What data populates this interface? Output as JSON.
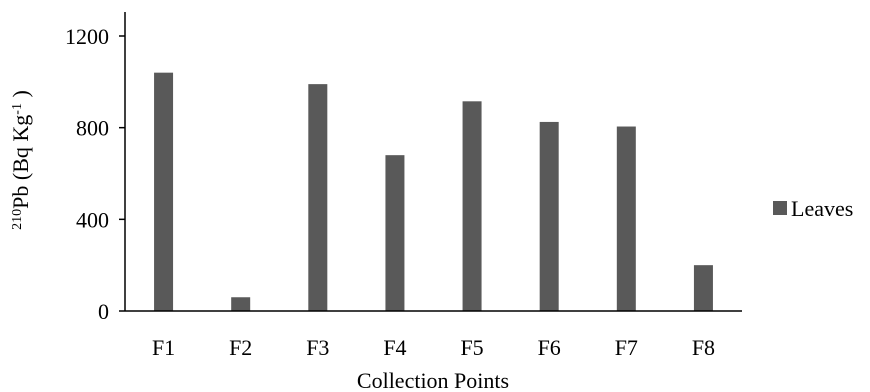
{
  "chart_data": {
    "type": "bar",
    "title": "",
    "xlabel": "Collection Points",
    "ylabel": {
      "sup": "210",
      "main": "Pb (Bq Kg",
      "exp": "-1",
      "close": " )"
    },
    "categories": [
      "F1",
      "F2",
      "F3",
      "F4",
      "F5",
      "F6",
      "F7",
      "F8"
    ],
    "series": [
      {
        "name": "Leaves",
        "color": "#595959",
        "values": [
          1040,
          60,
          990,
          680,
          915,
          825,
          805,
          200
        ]
      }
    ],
    "ylim": [
      0,
      1200
    ],
    "yticks": [
      "0",
      "400",
      "800",
      "1200"
    ],
    "grid": false,
    "legend_position": "right"
  }
}
